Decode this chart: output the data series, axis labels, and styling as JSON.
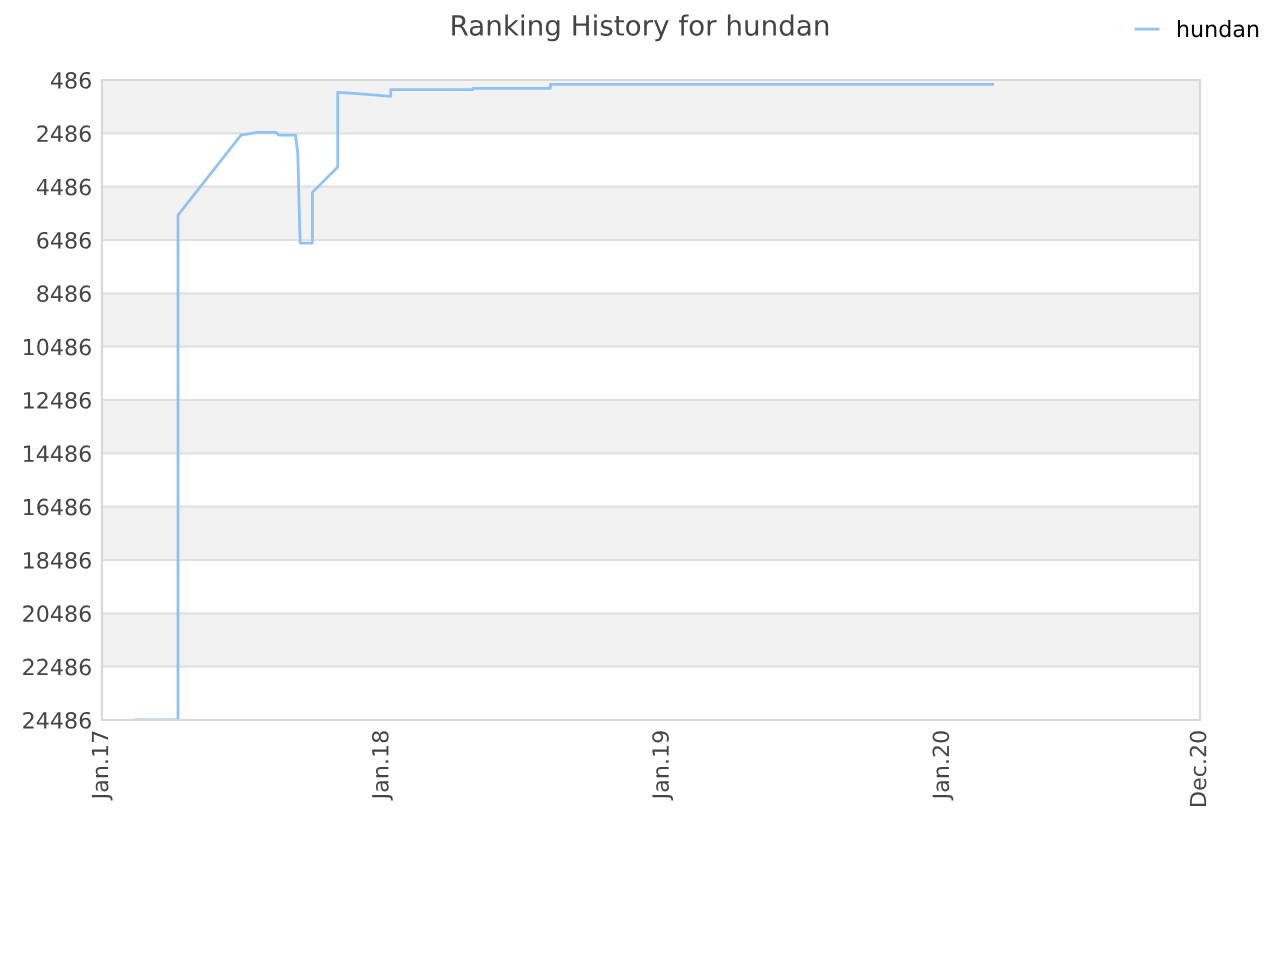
{
  "chart_data": {
    "type": "line",
    "title": "Ranking History for hundan",
    "x": [
      "2017-02-13",
      "2017-04-10",
      "2017-04-10",
      "2017-07-01",
      "2017-07-22",
      "2017-08-16",
      "2017-08-19",
      "2017-09-10",
      "2017-09-13",
      "2017-09-16",
      "2017-09-18",
      "2017-10-02",
      "2017-10-02",
      "2017-11-04",
      "2017-11-04",
      "2017-11-30",
      "2018-01-12",
      "2018-01-12",
      "2018-01-31",
      "2018-04-29",
      "2018-04-29",
      "2018-08-08",
      "2018-08-08",
      "2020-03-06"
    ],
    "series": [
      {
        "name": "hundan",
        "color": "#90c3f5",
        "values": [
          24486,
          24486,
          5550,
          2550,
          2450,
          2450,
          2550,
          2550,
          3250,
          6600,
          6600,
          6600,
          4700,
          3750,
          950,
          1000,
          1100,
          850,
          850,
          850,
          800,
          800,
          650,
          650
        ]
      }
    ],
    "ylim": [
      24486,
      486
    ],
    "yticks": [
      486,
      2486,
      4486,
      6486,
      8486,
      10486,
      12486,
      14486,
      16486,
      18486,
      20486,
      22486,
      24486
    ],
    "xlim": [
      "2017-01-01",
      "2020-12-01"
    ],
    "xticks": [
      {
        "value": "2017-01-01",
        "label": "Jan.17"
      },
      {
        "value": "2018-01-01",
        "label": "Jan.18"
      },
      {
        "value": "2019-01-01",
        "label": "Jan.19"
      },
      {
        "value": "2020-01-01",
        "label": "Jan.20"
      },
      {
        "value": "2020-12-01",
        "label": "Dec.20"
      }
    ],
    "grid": "y",
    "legend": "top right",
    "marker": "none",
    "line_style": "solid"
  }
}
